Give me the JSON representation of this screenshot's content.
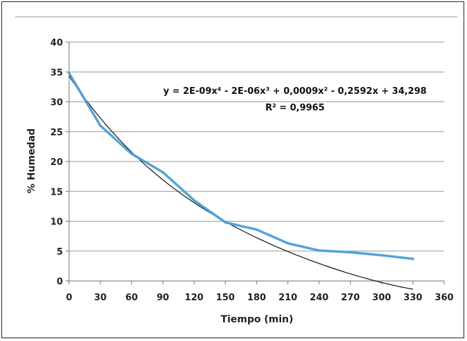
{
  "chart_data": {
    "type": "line",
    "xlabel": "Tiempo (min)",
    "ylabel": "% Humedad",
    "xlim": [
      0,
      360
    ],
    "ylim": [
      0,
      40
    ],
    "xticks": [
      0,
      30,
      60,
      90,
      120,
      150,
      180,
      210,
      240,
      270,
      300,
      330,
      360
    ],
    "yticks": [
      0,
      5,
      10,
      15,
      20,
      25,
      30,
      35,
      40
    ],
    "grid": "horizontal",
    "series": [
      {
        "color": "#4a9fd8",
        "x": [
          0,
          30,
          60,
          90,
          120,
          150,
          180,
          210,
          240,
          270,
          300,
          330
        ],
        "y": [
          34.8,
          26.0,
          21.3,
          18.2,
          13.5,
          9.8,
          8.6,
          6.3,
          5.1,
          4.8,
          4.3,
          3.7
        ]
      },
      {
        "color": "#111111",
        "trendline": "polynomial-4",
        "coefficients": [
          2e-09,
          -2e-06,
          0.0009,
          -0.2592,
          34.298
        ]
      }
    ],
    "annotations": {
      "equation": "y = 2E-09x⁴  - 2E-06x³  + 0,0009x²  - 0,2592x + 34,298",
      "r_squared": "R² = 0,9965"
    }
  }
}
